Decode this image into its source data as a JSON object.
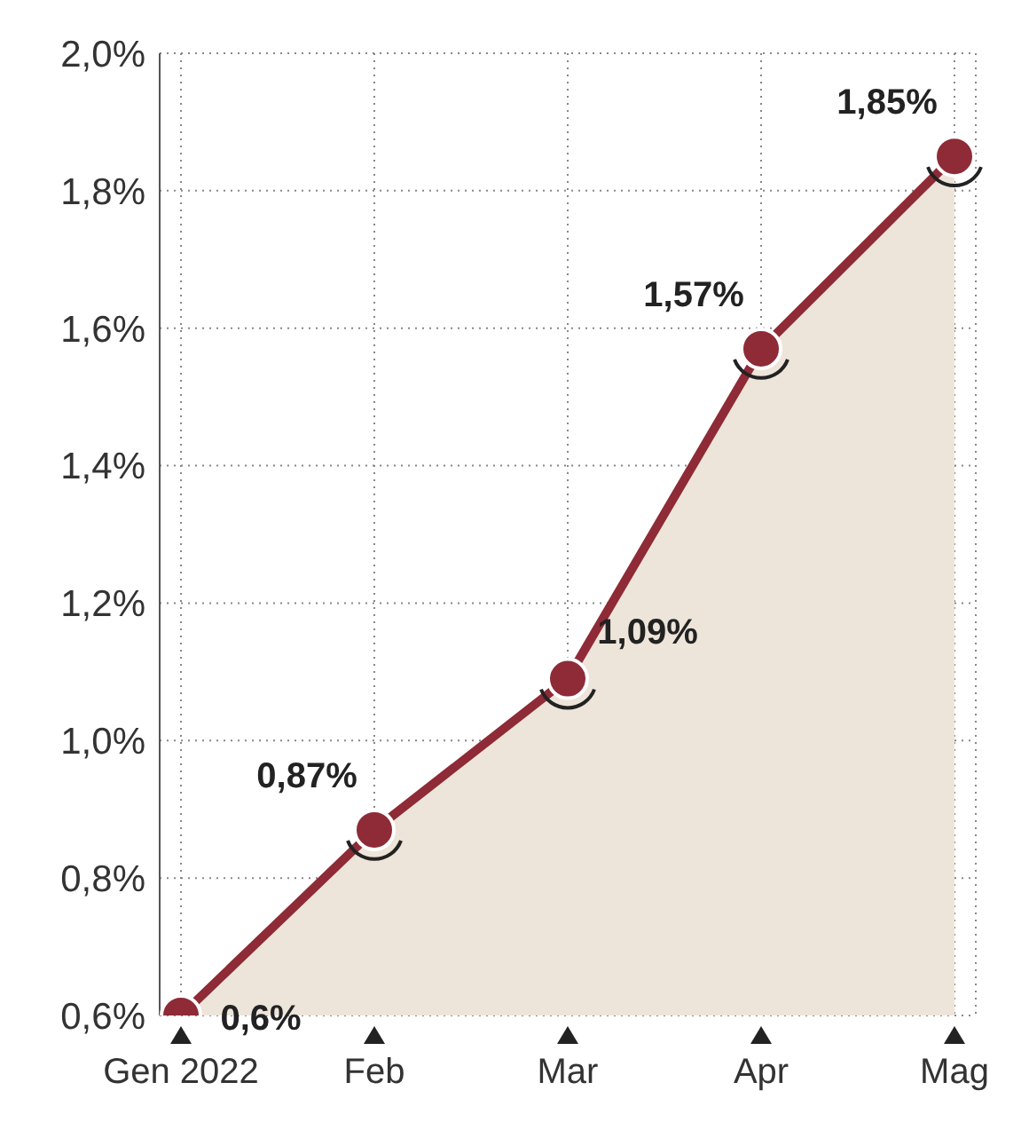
{
  "chart_data": {
    "type": "area",
    "categories": [
      "Gen 2022",
      "Feb",
      "Mar",
      "Apr",
      "Mag"
    ],
    "series": [
      {
        "color": "#8e2b36",
        "values": [
          0.6,
          0.87,
          1.09,
          1.57,
          1.85
        ],
        "value_labels": [
          "0,6%",
          "0,87%",
          "1,09%",
          "1,57%",
          "1,85%"
        ]
      }
    ],
    "ylim": [
      0.6,
      2.0
    ],
    "yticks": [
      {
        "value": 0.6,
        "label": "0,6%"
      },
      {
        "value": 0.8,
        "label": "0,8%"
      },
      {
        "value": 1.0,
        "label": "1,0%"
      },
      {
        "value": 1.2,
        "label": "1,2%"
      },
      {
        "value": 1.4,
        "label": "1,4%"
      },
      {
        "value": 1.6,
        "label": "1,6%"
      },
      {
        "value": 1.8,
        "label": "1,8%"
      },
      {
        "value": 2.0,
        "label": "2,0%"
      }
    ],
    "grid": true,
    "marker": "circle"
  }
}
